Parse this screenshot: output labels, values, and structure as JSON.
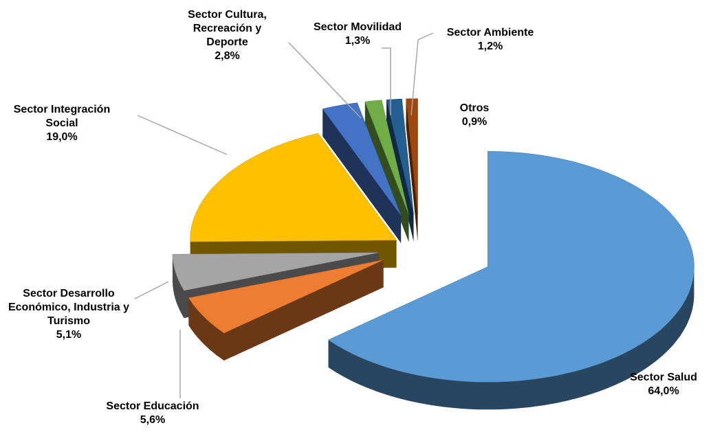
{
  "chart_data": {
    "type": "pie",
    "categories": [
      "Sector Salud",
      "Sector Educación",
      "Sector Desarrollo Económico, Industria y Turismo",
      "Sector Integración Social",
      "Sector Cultura, Recreación y Deporte",
      "Sector Movilidad",
      "Sector Ambiente",
      "Otros"
    ],
    "values": [
      64.0,
      5.6,
      5.1,
      19.0,
      2.8,
      1.3,
      1.2,
      0.9
    ],
    "value_labels": [
      "64,0%",
      "5,6%",
      "5,1%",
      "19,0%",
      "2,8%",
      "1,3%",
      "1,2%",
      "0,9%"
    ],
    "colors": [
      "#5b9bd5",
      "#ed7d31",
      "#a5a5a5",
      "#ffc000",
      "#4472c4",
      "#70ad47",
      "#255e91",
      "#9e480e"
    ]
  }
}
